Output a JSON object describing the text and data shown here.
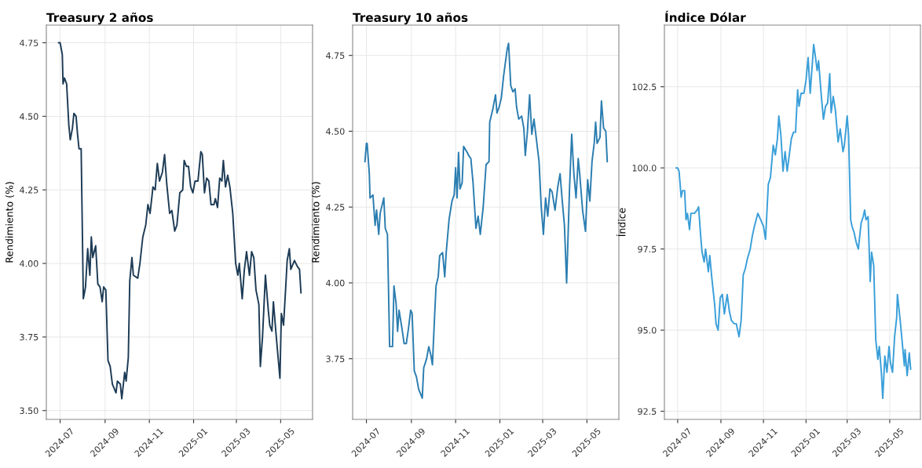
{
  "chart_data": [
    {
      "type": "line",
      "title": "Treasury 2 años",
      "ylabel": "Rendimiento (%)",
      "grid": true,
      "marker": "none",
      "line_style": "solid",
      "xlim": [
        "2024-06-12",
        "2025-06-14"
      ],
      "ylim": [
        3.47,
        4.81
      ],
      "xticks": [
        {
          "value": "2024-07-01",
          "label": "2024-07"
        },
        {
          "value": "2024-09-01",
          "label": "2024-09"
        },
        {
          "value": "2024-11-01",
          "label": "2024-11"
        },
        {
          "value": "2025-01-01",
          "label": "2025-01"
        },
        {
          "value": "2025-03-01",
          "label": "2025-03"
        },
        {
          "value": "2025-05-01",
          "label": "2025-05"
        }
      ],
      "yticks": [
        {
          "value": 3.5,
          "label": "3.50"
        },
        3.75,
        {
          "value": 4.0,
          "label": "4.00"
        },
        4.25,
        {
          "value": 4.5,
          "label": "4.50"
        },
        4.75
      ],
      "series": [
        {
          "color": "#1d3b55",
          "x": [
            "2024-06-29",
            "2024-07-01",
            "2024-07-04",
            "2024-07-05",
            "2024-07-07",
            "2024-07-10",
            "2024-07-13",
            "2024-07-15",
            "2024-07-18",
            "2024-07-20",
            "2024-07-23",
            "2024-07-25",
            "2024-07-27",
            "2024-07-30",
            "2024-08-02",
            "2024-08-05",
            "2024-08-08",
            "2024-08-11",
            "2024-08-13",
            "2024-08-15",
            "2024-08-19",
            "2024-08-22",
            "2024-08-25",
            "2024-08-28",
            "2024-08-30",
            "2024-09-02",
            "2024-09-05",
            "2024-09-08",
            "2024-09-11",
            "2024-09-16",
            "2024-09-18",
            "2024-09-22",
            "2024-09-24",
            "2024-09-28",
            "2024-09-30",
            "2024-10-03",
            "2024-10-05",
            "2024-10-08",
            "2024-10-10",
            "2024-10-16",
            "2024-10-19",
            "2024-10-23",
            "2024-10-27",
            "2024-10-30",
            "2024-11-02",
            "2024-11-06",
            "2024-11-09",
            "2024-11-12",
            "2024-11-15",
            "2024-11-19",
            "2024-11-22",
            "2024-11-25",
            "2024-11-29",
            "2024-12-02",
            "2024-12-06",
            "2024-12-09",
            "2024-12-13",
            "2024-12-17",
            "2024-12-19",
            "2024-12-22",
            "2024-12-25",
            "2024-12-28",
            "2024-12-31",
            "2025-01-03",
            "2025-01-07",
            "2025-01-11",
            "2025-01-13",
            "2025-01-16",
            "2025-01-19",
            "2025-01-22",
            "2025-01-25",
            "2025-01-29",
            "2025-01-31",
            "2025-02-03",
            "2025-02-06",
            "2025-02-09",
            "2025-02-11",
            "2025-02-14",
            "2025-02-17",
            "2025-02-20",
            "2025-02-24",
            "2025-02-28",
            "2025-03-03",
            "2025-03-05",
            "2025-03-09",
            "2025-03-12",
            "2025-03-15",
            "2025-03-19",
            "2025-03-22",
            "2025-03-25",
            "2025-03-28",
            "2025-04-01",
            "2025-04-03",
            "2025-04-06",
            "2025-04-10",
            "2025-04-14",
            "2025-04-16",
            "2025-04-19",
            "2025-04-21",
            "2025-04-25",
            "2025-04-30",
            "2025-05-02",
            "2025-05-05",
            "2025-05-08",
            "2025-05-10",
            "2025-05-13",
            "2025-05-15",
            "2025-05-20",
            "2025-05-24",
            "2025-05-27",
            "2025-05-29"
          ],
          "values": [
            4.75,
            4.75,
            4.71,
            4.61,
            4.63,
            4.61,
            4.47,
            4.42,
            4.46,
            4.51,
            4.5,
            4.44,
            4.39,
            4.39,
            3.88,
            3.92,
            4.05,
            3.96,
            4.09,
            4.02,
            4.06,
            3.93,
            3.92,
            3.87,
            3.92,
            3.91,
            3.67,
            3.65,
            3.59,
            3.56,
            3.6,
            3.59,
            3.54,
            3.63,
            3.6,
            3.68,
            3.94,
            4.02,
            3.96,
            3.95,
            4.0,
            4.09,
            4.13,
            4.2,
            4.17,
            4.26,
            4.25,
            4.34,
            4.28,
            4.31,
            4.37,
            4.27,
            4.17,
            4.18,
            4.11,
            4.13,
            4.24,
            4.25,
            4.35,
            4.33,
            4.33,
            4.26,
            4.24,
            4.28,
            4.28,
            4.38,
            4.37,
            4.24,
            4.29,
            4.28,
            4.2,
            4.2,
            4.22,
            4.19,
            4.29,
            4.28,
            4.35,
            4.26,
            4.3,
            4.26,
            4.17,
            4.0,
            3.96,
            4.0,
            3.88,
            3.98,
            4.04,
            3.96,
            4.04,
            4.02,
            3.91,
            3.86,
            3.65,
            3.75,
            3.96,
            3.84,
            3.79,
            3.77,
            3.87,
            3.75,
            3.61,
            3.83,
            3.79,
            3.92,
            4.01,
            4.05,
            3.98,
            4.01,
            3.99,
            3.98,
            3.9
          ]
        }
      ]
    },
    {
      "type": "line",
      "title": "Treasury 10 años",
      "ylabel": "Rendimiento (%)",
      "grid": true,
      "marker": "none",
      "line_style": "solid",
      "xlim": [
        "2024-06-12",
        "2025-06-14"
      ],
      "ylim": [
        3.55,
        4.85
      ],
      "xticks": [
        {
          "value": "2024-07-01",
          "label": "2024-07"
        },
        {
          "value": "2024-09-01",
          "label": "2024-09"
        },
        {
          "value": "2024-11-01",
          "label": "2024-11"
        },
        {
          "value": "2025-01-01",
          "label": "2025-01"
        },
        {
          "value": "2025-03-01",
          "label": "2025-03"
        },
        {
          "value": "2025-05-01",
          "label": "2025-05"
        }
      ],
      "yticks": [
        3.75,
        {
          "value": 4.0,
          "label": "4.00"
        },
        4.25,
        {
          "value": 4.5,
          "label": "4.50"
        },
        4.75
      ],
      "series": [
        {
          "color": "#2b7db0",
          "x": [
            "2024-06-29",
            "2024-07-01",
            "2024-07-02",
            "2024-07-05",
            "2024-07-06",
            "2024-07-10",
            "2024-07-13",
            "2024-07-15",
            "2024-07-18",
            "2024-07-20",
            "2024-07-25",
            "2024-07-27",
            "2024-07-30",
            "2024-08-02",
            "2024-08-06",
            "2024-08-08",
            "2024-08-11",
            "2024-08-13",
            "2024-08-15",
            "2024-08-19",
            "2024-08-22",
            "2024-08-25",
            "2024-08-28",
            "2024-08-31",
            "2024-09-02",
            "2024-09-05",
            "2024-09-08",
            "2024-09-11",
            "2024-09-16",
            "2024-09-18",
            "2024-09-22",
            "2024-09-25",
            "2024-09-28",
            "2024-09-30",
            "2024-10-03",
            "2024-10-05",
            "2024-10-08",
            "2024-10-10",
            "2024-10-14",
            "2024-10-17",
            "2024-10-19",
            "2024-10-23",
            "2024-10-27",
            "2024-10-30",
            "2024-11-01",
            "2024-11-03",
            "2024-11-05",
            "2024-11-07",
            "2024-11-10",
            "2024-11-12",
            "2024-11-17",
            "2024-11-19",
            "2024-11-22",
            "2024-11-25",
            "2024-11-29",
            "2024-12-02",
            "2024-12-05",
            "2024-12-09",
            "2024-12-13",
            "2024-12-17",
            "2024-12-18",
            "2024-12-22",
            "2024-12-26",
            "2024-12-28",
            "2024-12-31",
            "2025-01-03",
            "2025-01-06",
            "2025-01-11",
            "2025-01-13",
            "2025-01-16",
            "2025-01-19",
            "2025-01-22",
            "2025-01-24",
            "2025-01-27",
            "2025-01-31",
            "2025-02-03",
            "2025-02-05",
            "2025-02-08",
            "2025-02-11",
            "2025-02-14",
            "2025-02-17",
            "2025-02-20",
            "2025-02-24",
            "2025-02-27",
            "2025-03-02",
            "2025-03-05",
            "2025-03-08",
            "2025-03-11",
            "2025-03-14",
            "2025-03-18",
            "2025-03-22",
            "2025-03-25",
            "2025-03-28",
            "2025-03-31",
            "2025-04-03",
            "2025-04-07",
            "2025-04-10",
            "2025-04-13",
            "2025-04-16",
            "2025-04-19",
            "2025-04-21",
            "2025-04-25",
            "2025-04-29",
            "2025-05-02",
            "2025-05-05",
            "2025-05-08",
            "2025-05-11",
            "2025-05-13",
            "2025-05-15",
            "2025-05-19",
            "2025-05-21",
            "2025-05-24",
            "2025-05-27",
            "2025-05-29"
          ],
          "values": [
            4.4,
            4.46,
            4.46,
            4.36,
            4.28,
            4.29,
            4.19,
            4.24,
            4.16,
            4.23,
            4.28,
            4.18,
            4.16,
            3.79,
            3.79,
            3.99,
            3.93,
            3.84,
            3.91,
            3.85,
            3.8,
            3.8,
            3.85,
            3.91,
            3.9,
            3.71,
            3.69,
            3.65,
            3.62,
            3.72,
            3.75,
            3.79,
            3.76,
            3.73,
            3.89,
            3.99,
            4.02,
            4.09,
            4.1,
            4.02,
            4.1,
            4.21,
            4.27,
            4.29,
            4.38,
            4.28,
            4.43,
            4.31,
            4.33,
            4.45,
            4.43,
            4.42,
            4.41,
            4.33,
            4.18,
            4.22,
            4.16,
            4.25,
            4.39,
            4.4,
            4.53,
            4.57,
            4.62,
            4.56,
            4.58,
            4.61,
            4.68,
            4.77,
            4.79,
            4.65,
            4.63,
            4.64,
            4.58,
            4.54,
            4.55,
            4.51,
            4.42,
            4.5,
            4.62,
            4.49,
            4.54,
            4.48,
            4.4,
            4.25,
            4.16,
            4.28,
            4.22,
            4.31,
            4.3,
            4.24,
            4.32,
            4.36,
            4.27,
            4.19,
            4.0,
            4.31,
            4.49,
            4.36,
            4.28,
            4.41,
            4.36,
            4.24,
            4.17,
            4.34,
            4.27,
            4.4,
            4.46,
            4.53,
            4.46,
            4.48,
            4.6,
            4.51,
            4.5,
            4.4
          ]
        }
      ]
    },
    {
      "type": "line",
      "title": "Índice Dólar",
      "ylabel": "Índice",
      "grid": true,
      "marker": "none",
      "line_style": "solid",
      "xlim": [
        "2024-06-12",
        "2025-06-14"
      ],
      "ylim": [
        92.25,
        104.4
      ],
      "xticks": [
        {
          "value": "2024-07-01",
          "label": "2024-07"
        },
        {
          "value": "2024-09-01",
          "label": "2024-09"
        },
        {
          "value": "2024-11-01",
          "label": "2024-11"
        },
        {
          "value": "2025-01-01",
          "label": "2025-01"
        },
        {
          "value": "2025-03-01",
          "label": "2025-03"
        },
        {
          "value": "2025-05-01",
          "label": "2025-05"
        }
      ],
      "yticks": [
        92.5,
        {
          "value": 95.0,
          "label": "95.0"
        },
        97.5,
        {
          "value": 100.0,
          "label": "100.0"
        },
        102.5
      ],
      "series": [
        {
          "color": "#3a9fd9",
          "x": [
            "2024-06-29",
            "2024-07-01",
            "2024-07-03",
            "2024-07-06",
            "2024-07-08",
            "2024-07-11",
            "2024-07-13",
            "2024-07-15",
            "2024-07-18",
            "2024-07-20",
            "2024-07-25",
            "2024-07-29",
            "2024-07-31",
            "2024-08-03",
            "2024-08-05",
            "2024-08-08",
            "2024-08-10",
            "2024-08-14",
            "2024-08-16",
            "2024-08-19",
            "2024-08-23",
            "2024-08-25",
            "2024-08-28",
            "2024-08-31",
            "2024-09-03",
            "2024-09-06",
            "2024-09-10",
            "2024-09-13",
            "2024-09-16",
            "2024-09-20",
            "2024-09-23",
            "2024-09-27",
            "2024-09-30",
            "2024-10-03",
            "2024-10-06",
            "2024-10-09",
            "2024-10-13",
            "2024-10-16",
            "2024-10-19",
            "2024-10-24",
            "2024-10-28",
            "2024-11-01",
            "2024-11-04",
            "2024-11-07",
            "2024-11-08",
            "2024-11-11",
            "2024-11-13",
            "2024-11-15",
            "2024-11-18",
            "2024-11-21",
            "2024-11-23",
            "2024-11-26",
            "2024-11-29",
            "2024-12-02",
            "2024-12-05",
            "2024-12-08",
            "2024-12-11",
            "2024-12-14",
            "2024-12-17",
            "2024-12-20",
            "2024-12-22",
            "2024-12-25",
            "2024-12-29",
            "2025-01-01",
            "2025-01-04",
            "2025-01-07",
            "2025-01-09",
            "2025-01-12",
            "2025-01-14",
            "2025-01-17",
            "2025-01-19",
            "2025-01-23",
            "2025-01-26",
            "2025-01-29",
            "2025-02-01",
            "2025-02-04",
            "2025-02-06",
            "2025-02-09",
            "2025-02-12",
            "2025-02-16",
            "2025-02-19",
            "2025-02-23",
            "2025-02-25",
            "2025-03-01",
            "2025-03-03",
            "2025-03-06",
            "2025-03-08",
            "2025-03-11",
            "2025-03-14",
            "2025-03-17",
            "2025-03-21",
            "2025-03-24",
            "2025-03-26",
            "2025-03-28",
            "2025-03-31",
            "2025-04-03",
            "2025-04-05",
            "2025-04-08",
            "2025-04-11",
            "2025-04-14",
            "2025-04-16",
            "2025-04-19",
            "2025-04-21",
            "2025-04-24",
            "2025-04-27",
            "2025-04-30",
            "2025-05-02",
            "2025-05-05",
            "2025-05-08",
            "2025-05-11",
            "2025-05-12",
            "2025-05-14",
            "2025-05-16",
            "2025-05-19",
            "2025-05-22",
            "2025-05-23",
            "2025-05-26",
            "2025-05-29",
            "2025-05-31"
          ],
          "values": [
            100.0,
            100.0,
            99.9,
            99.1,
            99.3,
            99.3,
            98.4,
            98.6,
            98.1,
            98.6,
            98.6,
            98.7,
            98.8,
            97.9,
            97.4,
            97.1,
            97.5,
            96.8,
            97.3,
            96.6,
            95.8,
            95.2,
            95.0,
            96.0,
            96.1,
            95.5,
            96.1,
            95.6,
            95.3,
            95.2,
            95.2,
            94.8,
            95.3,
            96.7,
            96.9,
            97.2,
            97.5,
            97.9,
            98.2,
            98.6,
            98.4,
            98.2,
            97.8,
            99.1,
            99.5,
            99.7,
            100.2,
            100.7,
            100.4,
            100.9,
            101.6,
            101.0,
            99.9,
            100.5,
            99.9,
            100.4,
            100.9,
            101.1,
            101.1,
            102.4,
            101.9,
            102.3,
            102.3,
            102.7,
            103.4,
            102.3,
            102.9,
            103.8,
            103.5,
            103.0,
            103.3,
            102.2,
            101.5,
            101.9,
            102.0,
            102.9,
            101.7,
            102.2,
            101.8,
            100.8,
            101.2,
            100.5,
            100.7,
            101.6,
            101.0,
            98.4,
            98.2,
            98.0,
            97.7,
            97.5,
            98.3,
            98.5,
            98.7,
            98.4,
            98.5,
            96.5,
            97.4,
            97.0,
            94.7,
            94.1,
            94.5,
            93.7,
            92.9,
            94.2,
            93.7,
            94.5,
            94.0,
            93.7,
            94.8,
            95.4,
            96.1,
            95.7,
            95.3,
            94.6,
            93.9,
            94.4,
            93.6,
            94.3,
            93.8
          ]
        }
      ]
    }
  ]
}
